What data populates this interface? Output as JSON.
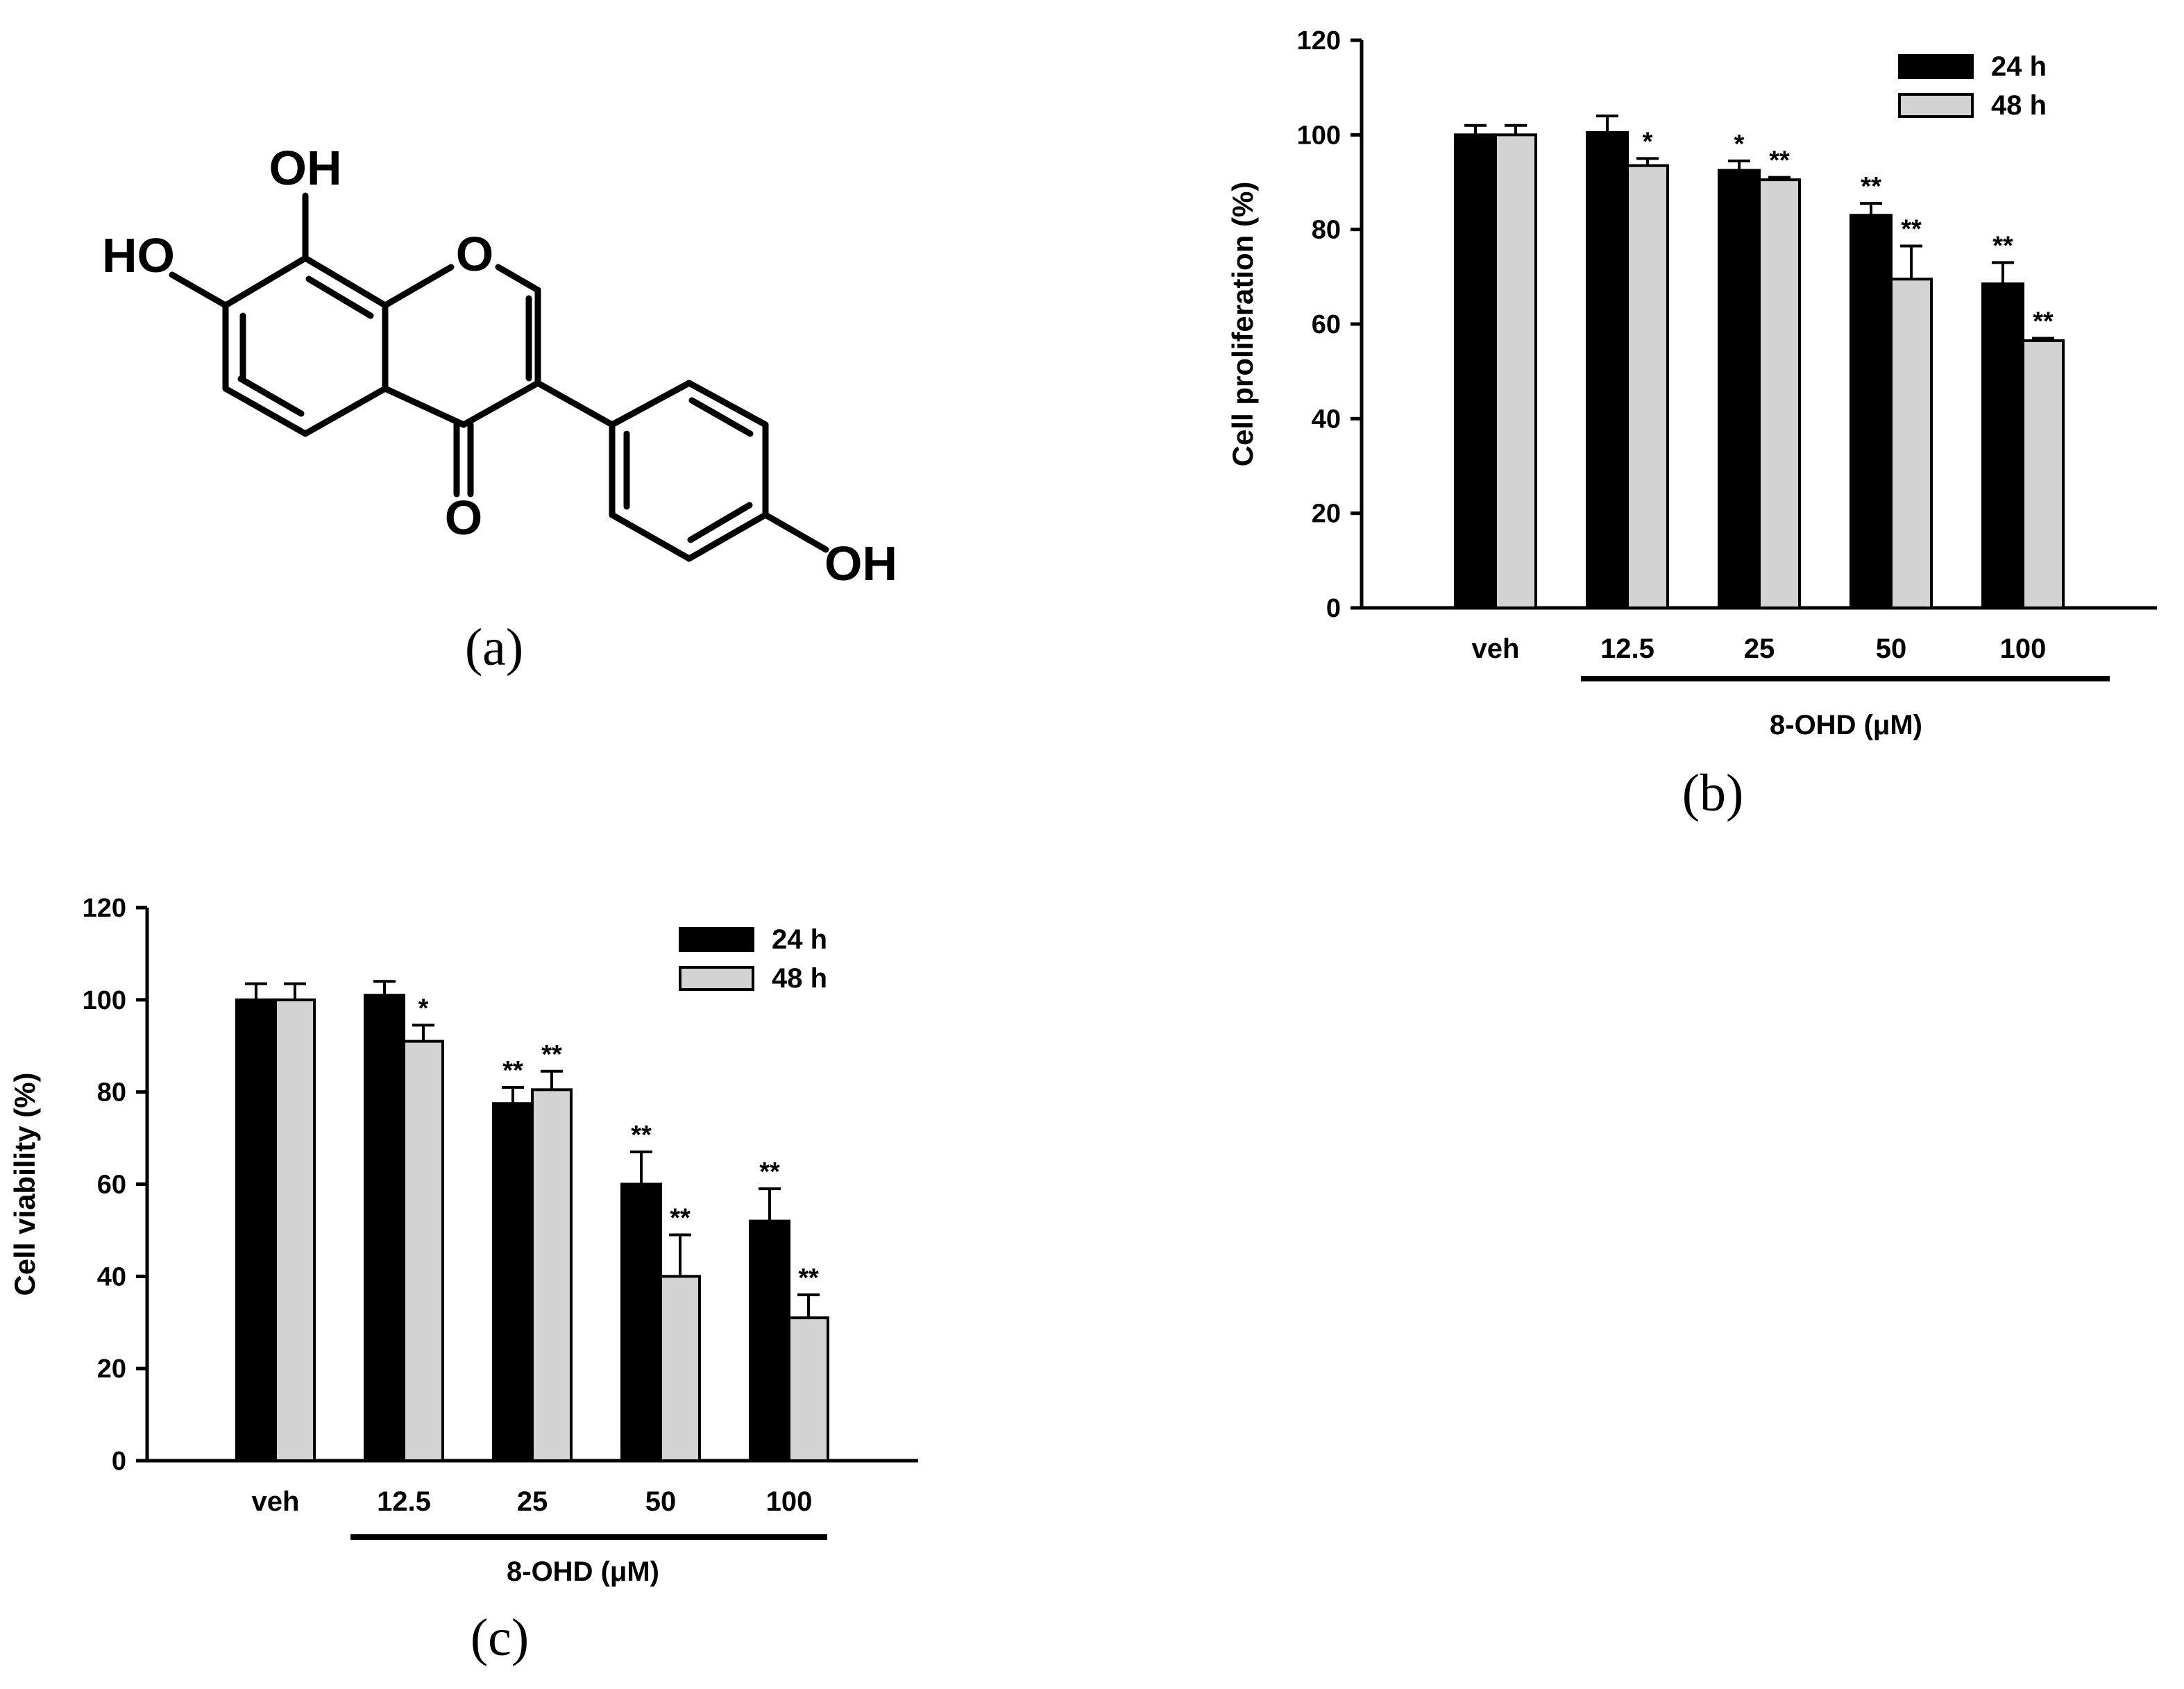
{
  "colors": {
    "series1": "#000000",
    "series2": "#d3d3d3",
    "stroke": "#000000"
  },
  "panel_a": {
    "caption": "(a)",
    "atoms": {
      "oh_top": "OH",
      "ho_left": "HO",
      "o_ring": "O",
      "o_carbonyl": "O",
      "oh_right": "OH"
    }
  },
  "panel_b": {
    "caption": "(b)",
    "group_label": "8-OHD (μM)"
  },
  "panel_c": {
    "caption": "(c)",
    "group_label": "8-OHD (μM)"
  },
  "chart_data": [
    {
      "type": "bar",
      "title": "",
      "xlabel": "8-OHD (μM)",
      "ylabel": "Cell proliferation (%)",
      "ylim": [
        0,
        120
      ],
      "yticks": [
        0,
        20,
        40,
        60,
        80,
        100,
        120
      ],
      "categories": [
        "veh",
        "12.5",
        "25",
        "50",
        "100"
      ],
      "legend_position": "top-right",
      "series": [
        {
          "name": "24 h",
          "color": "#000000",
          "values": [
            100,
            100.5,
            92.5,
            83,
            68.5
          ],
          "errors": [
            2,
            3.5,
            2,
            2.5,
            4.5
          ],
          "annotations": [
            "",
            "",
            "*",
            "**",
            "**"
          ]
        },
        {
          "name": "48 h",
          "color": "#d3d3d3",
          "values": [
            100,
            93.5,
            90.5,
            69.5,
            56.5
          ],
          "errors": [
            2,
            1.5,
            0.5,
            7,
            0.5
          ],
          "annotations": [
            "",
            "*",
            "**",
            "**",
            "**"
          ]
        }
      ]
    },
    {
      "type": "bar",
      "title": "",
      "xlabel": "8-OHD (μM)",
      "ylabel": "Cell viability (%)",
      "ylim": [
        0,
        120
      ],
      "yticks": [
        0,
        20,
        40,
        60,
        80,
        100,
        120
      ],
      "categories": [
        "veh",
        "12.5",
        "25",
        "50",
        "100"
      ],
      "legend_position": "top-right",
      "series": [
        {
          "name": "24 h",
          "color": "#000000",
          "values": [
            100,
            101,
            77.5,
            60,
            52
          ],
          "errors": [
            3.5,
            3,
            3.5,
            7,
            7
          ],
          "annotations": [
            "",
            "",
            "**",
            "**",
            "**"
          ]
        },
        {
          "name": "48 h",
          "color": "#d3d3d3",
          "values": [
            100,
            91,
            80.5,
            40,
            31
          ],
          "errors": [
            3.5,
            3.5,
            4,
            9,
            5
          ],
          "annotations": [
            "",
            "*",
            "**",
            "**",
            "**"
          ]
        }
      ]
    }
  ]
}
